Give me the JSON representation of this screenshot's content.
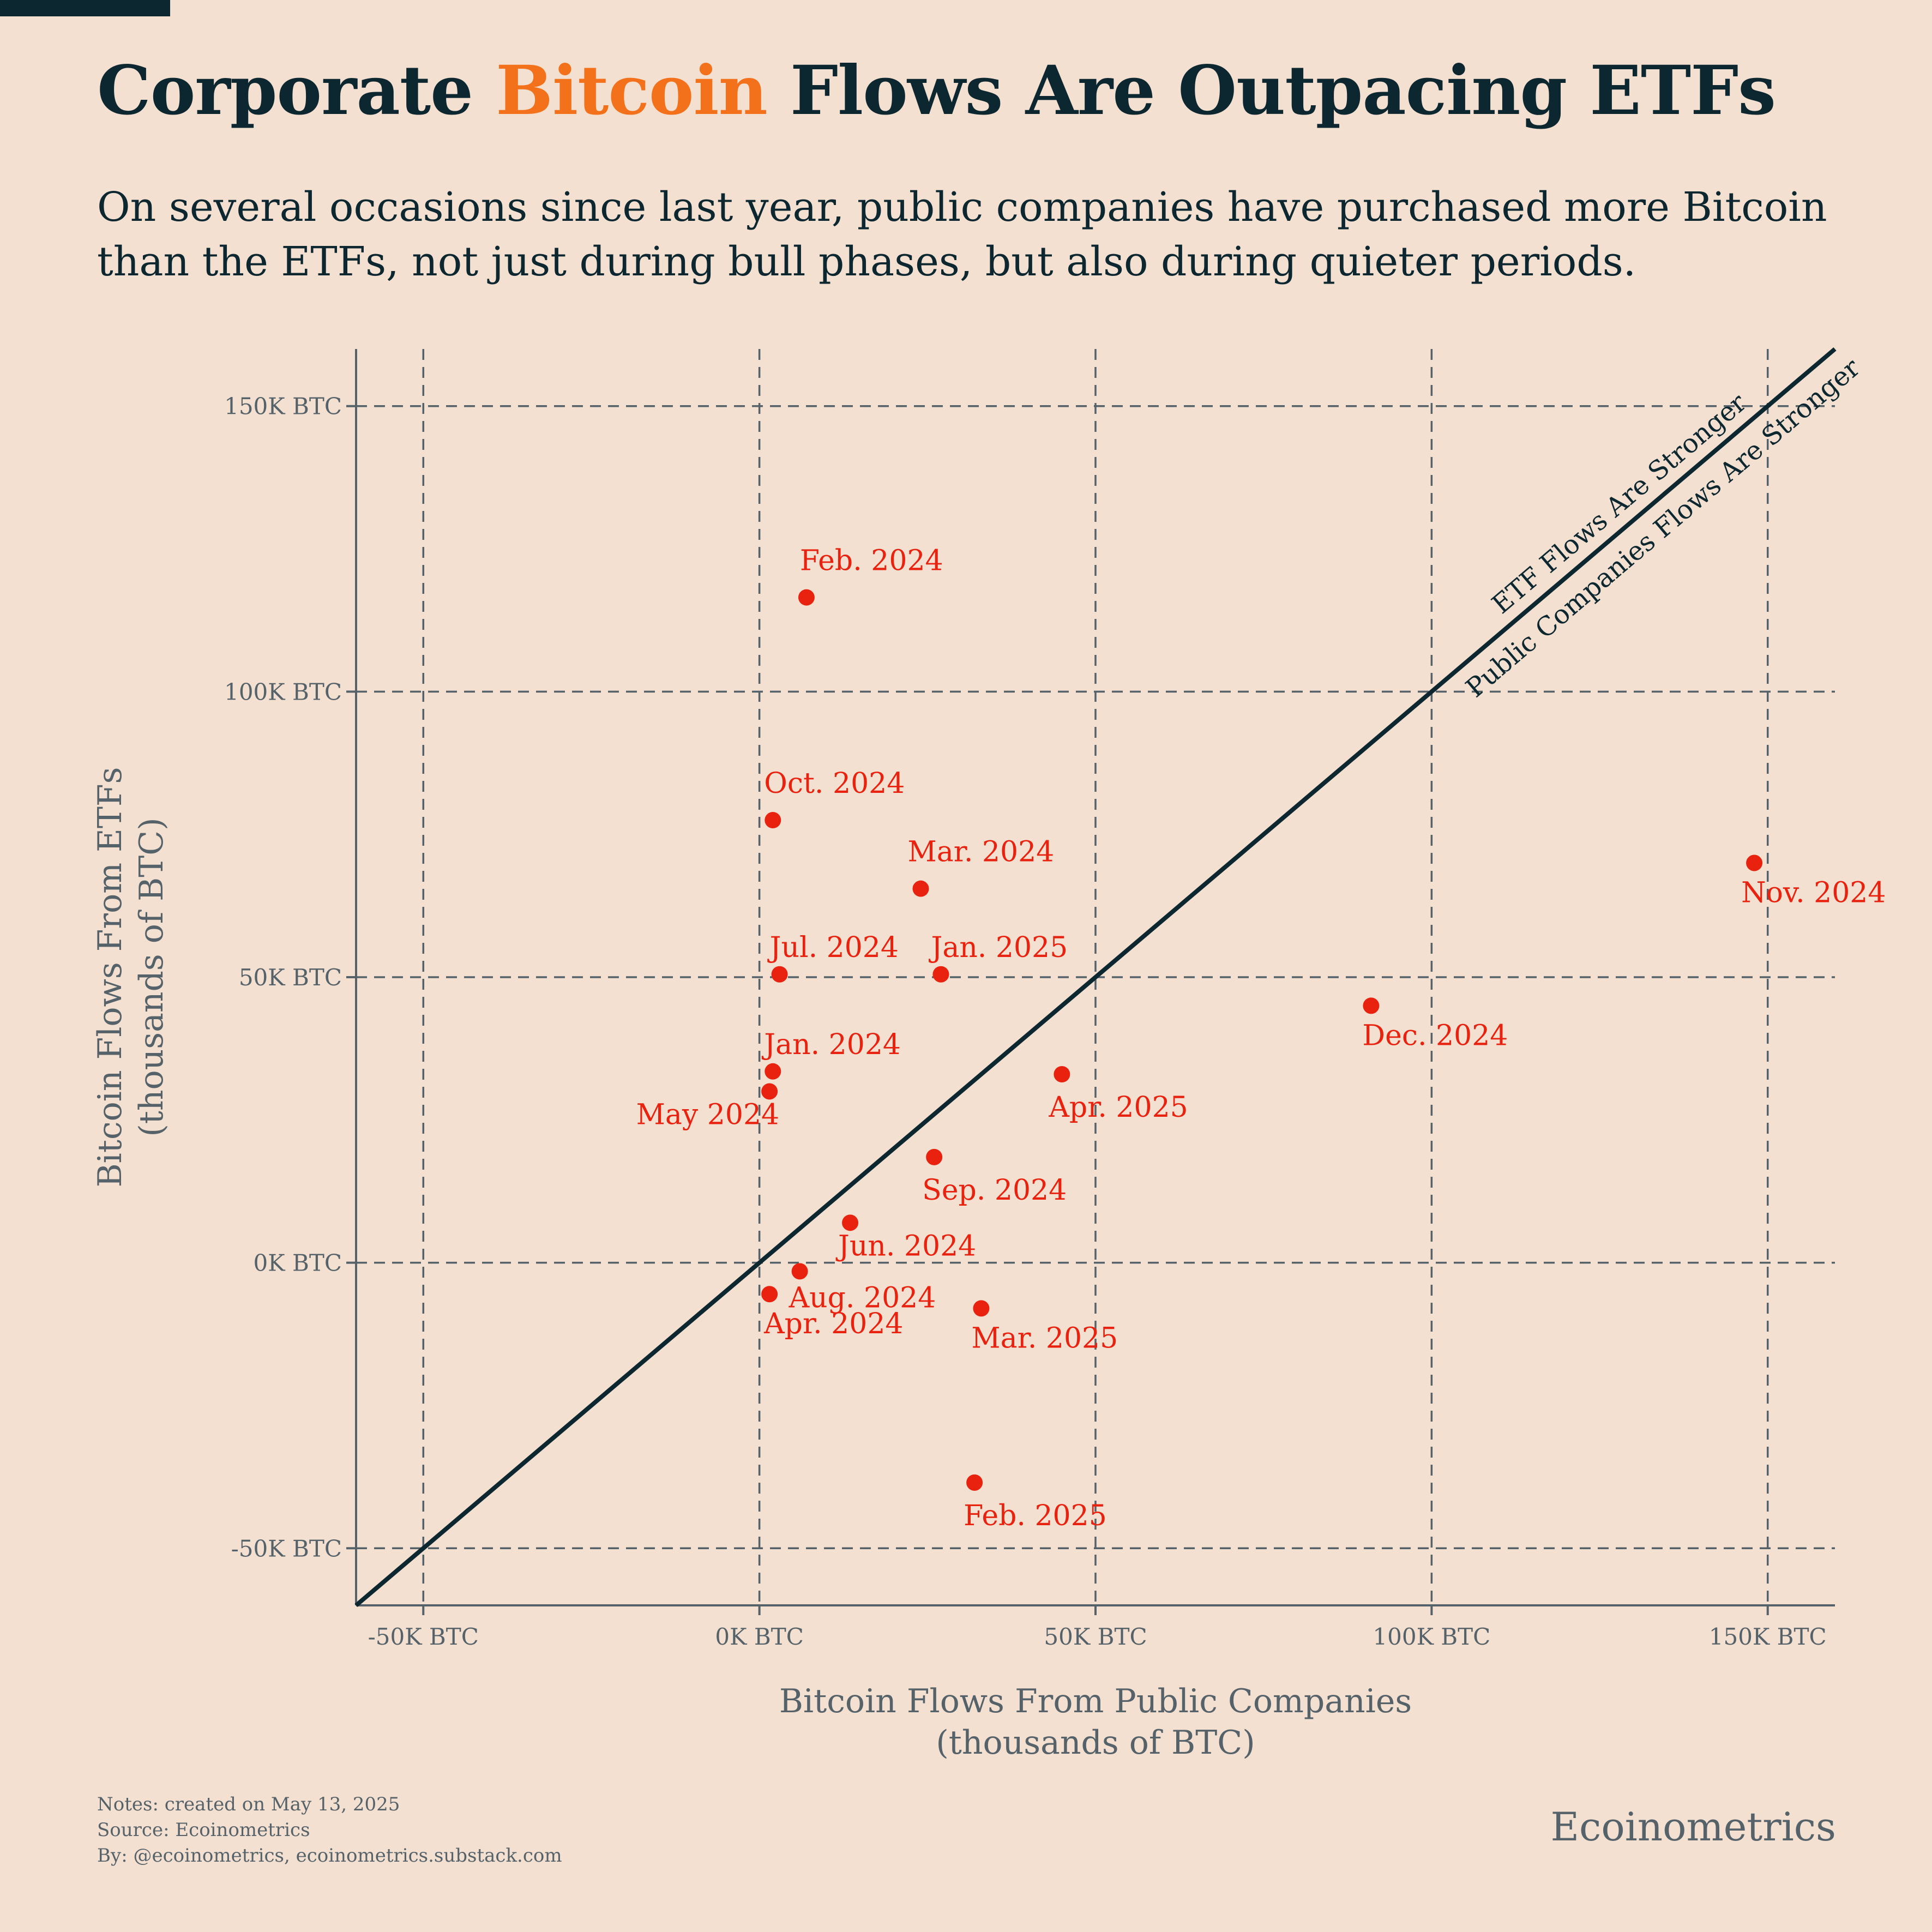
{
  "title": {
    "part1": "Corporate ",
    "highlight": "Bitcoin",
    "part2": " Flows Are Outpacing ETFs"
  },
  "subtitle": "On several occasions since last year, public companies have purchased more Bitcoin than the ETFs, not just during bull phases, but also during quieter periods.",
  "colors": {
    "background": "#f3e0d0",
    "text": "#0d2731",
    "accent": "#f4711b",
    "points": "#e8220e",
    "axis": "#56626a"
  },
  "chart_data": {
    "type": "scatter",
    "xlabel": [
      "Bitcoin Flows From Public Companies",
      "(thousands of BTC)"
    ],
    "ylabel": [
      "Bitcoin Flows From ETFs",
      "(thousands of BTC)"
    ],
    "xlim": [
      -60,
      160
    ],
    "ylim": [
      -60,
      160
    ],
    "xticks": [
      -50,
      0,
      50,
      100,
      150
    ],
    "yticks": [
      -50,
      0,
      50,
      100,
      150
    ],
    "xtick_labels": [
      "-50K BTC",
      "0K BTC",
      "50K BTC",
      "100K BTC",
      "150K BTC"
    ],
    "ytick_labels": [
      "-50K BTC",
      "0K BTC",
      "50K BTC",
      "100K BTC",
      "150K BTC"
    ],
    "grid": true,
    "reference_line": {
      "slope": 1,
      "intercept": 0
    },
    "annotations": [
      "ETF Flows Are Stronger",
      "Public Companies Flows Are Stronger"
    ],
    "points": [
      {
        "label": "Feb. 2024",
        "x": 7,
        "y": 116.5
      },
      {
        "label": "Oct. 2024",
        "x": 2,
        "y": 77.5
      },
      {
        "label": "Mar. 2024",
        "x": 24,
        "y": 65.5
      },
      {
        "label": "Jul. 2024",
        "x": 3,
        "y": 50.5
      },
      {
        "label": "Jan. 2025",
        "x": 27,
        "y": 50.5
      },
      {
        "label": "Jan. 2024",
        "x": 2,
        "y": 33.5
      },
      {
        "label": "May 2024",
        "x": 1.5,
        "y": 30
      },
      {
        "label": "Apr. 2025",
        "x": 45,
        "y": 33
      },
      {
        "label": "Sep. 2024",
        "x": 26,
        "y": 18.5
      },
      {
        "label": "Jun. 2024",
        "x": 13.5,
        "y": 7
      },
      {
        "label": "Aug. 2024",
        "x": 6,
        "y": -1.5
      },
      {
        "label": "Apr. 2024",
        "x": 1.5,
        "y": -5.5
      },
      {
        "label": "Mar. 2025",
        "x": 33,
        "y": -8
      },
      {
        "label": "Feb. 2025",
        "x": 32,
        "y": -38.5
      },
      {
        "label": "Dec. 2024",
        "x": 91,
        "y": 45
      },
      {
        "label": "Nov. 2024",
        "x": 148,
        "y": 70
      }
    ]
  },
  "footer": {
    "notes": "Notes: created on May 13, 2025",
    "source": "Source: Ecoinometrics",
    "by": "By: @ecoinometrics, ecoinometrics.substack.com"
  },
  "brand": "Ecoinometrics"
}
